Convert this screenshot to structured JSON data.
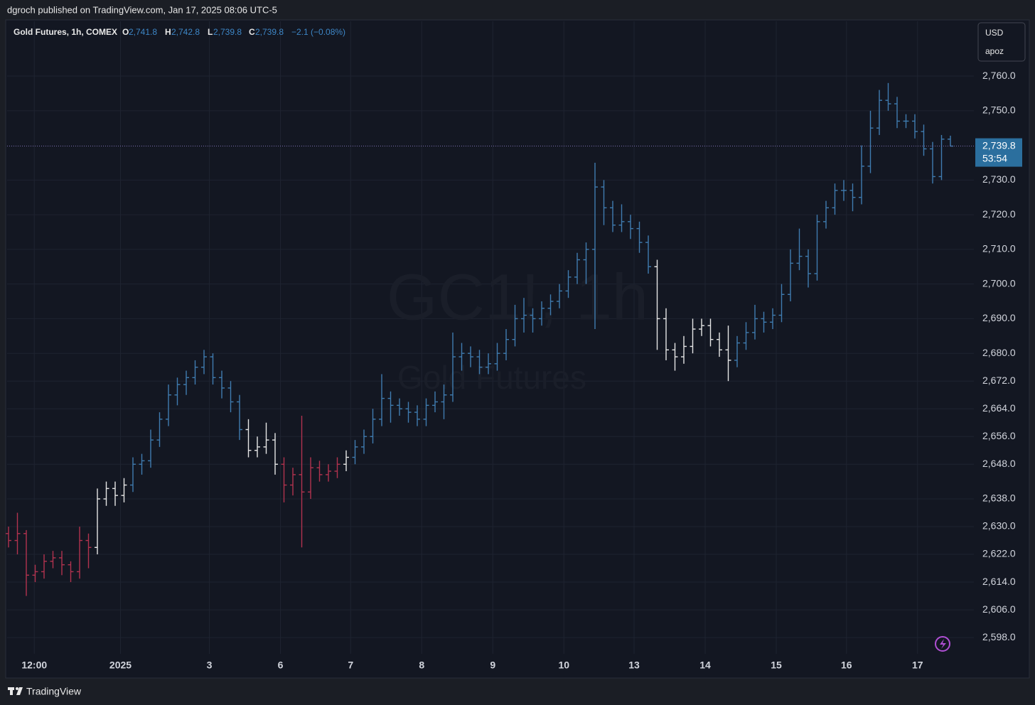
{
  "header": {
    "published": "dgroch published on TradingView.com, Jan 17, 2025 08:06 UTC-5"
  },
  "legend": {
    "symbol": "Gold Futures, 1h, COMEX",
    "o_key": "O",
    "o_val": "2,741.8",
    "h_key": "H",
    "h_val": "2,742.8",
    "l_key": "L",
    "l_val": "2,739.8",
    "c_key": "C",
    "c_val": "2,739.8",
    "change": "−2.1 (−0.08%)"
  },
  "scale_box": {
    "currency": "USD",
    "script": "apoz"
  },
  "watermark": {
    "symbol": "GC1!, 1h",
    "name": "Gold Futures"
  },
  "footer": {
    "brand": "TradingView"
  },
  "chart_data": {
    "type": "ohlc",
    "colors": {
      "r": "#b2334f",
      "w": "#e6e6e6",
      "b": "#3f7cb0"
    },
    "bar_colors": [
      "r",
      "r",
      "r",
      "r",
      "r",
      "r",
      "r",
      "r",
      "r",
      "r",
      "w",
      "w",
      "w",
      "w",
      "b",
      "b",
      "b",
      "b",
      "b",
      "b",
      "b",
      "b",
      "b",
      "b",
      "b",
      "b",
      "b",
      "w",
      "w",
      "w",
      "w",
      "r",
      "r",
      "r",
      "r",
      "r",
      "r",
      "r",
      "w",
      "b",
      "b",
      "b",
      "b",
      "b",
      "b",
      "b",
      "b",
      "b",
      "b",
      "b",
      "b",
      "b",
      "b",
      "b",
      "b",
      "b",
      "b",
      "b",
      "b",
      "b",
      "b",
      "b",
      "b",
      "b",
      "b",
      "b",
      "b",
      "b",
      "b",
      "b",
      "b",
      "b",
      "b",
      "w",
      "w",
      "w",
      "w",
      "w",
      "w",
      "w",
      "w",
      "w",
      "b",
      "b",
      "b",
      "b",
      "b",
      "b",
      "b",
      "b",
      "b",
      "b",
      "b",
      "b",
      "b",
      "b",
      "b",
      "b",
      "b",
      "b",
      "b",
      "b",
      "b",
      "b",
      "b",
      "b",
      "b"
    ],
    "ohlc": [
      [
        2628,
        2630,
        2624,
        2626
      ],
      [
        2626,
        2634,
        2622,
        2628
      ],
      [
        2628,
        2629,
        2610,
        2616
      ],
      [
        2616,
        2619,
        2614,
        2617
      ],
      [
        2617,
        2622,
        2615,
        2620
      ],
      [
        2620,
        2623,
        2618,
        2621
      ],
      [
        2621,
        2623,
        2616,
        2619
      ],
      [
        2619,
        2620,
        2614,
        2617
      ],
      [
        2617,
        2630,
        2615,
        2626
      ],
      [
        2626,
        2628,
        2618,
        2624
      ],
      [
        2624,
        2641,
        2622,
        2638
      ],
      [
        2638,
        2643,
        2636,
        2641
      ],
      [
        2641,
        2643,
        2636,
        2639
      ],
      [
        2639,
        2644,
        2637,
        2642
      ],
      [
        2642,
        2650,
        2640,
        2648
      ],
      [
        2648,
        2651,
        2645,
        2649
      ],
      [
        2649,
        2658,
        2647,
        2655
      ],
      [
        2655,
        2663,
        2653,
        2661
      ],
      [
        2661,
        2671,
        2659,
        2668
      ],
      [
        2668,
        2673,
        2665,
        2671
      ],
      [
        2671,
        2675,
        2668,
        2673
      ],
      [
        2673,
        2678,
        2671,
        2676
      ],
      [
        2676,
        2681,
        2674,
        2679
      ],
      [
        2679,
        2680,
        2671,
        2673
      ],
      [
        2673,
        2675,
        2667,
        2670
      ],
      [
        2670,
        2672,
        2663,
        2666
      ],
      [
        2666,
        2668,
        2655,
        2658
      ],
      [
        2658,
        2661,
        2650,
        2652
      ],
      [
        2652,
        2656,
        2650,
        2653
      ],
      [
        2653,
        2660,
        2651,
        2655
      ],
      [
        2655,
        2657,
        2645,
        2648
      ],
      [
        2648,
        2650,
        2637,
        2642
      ],
      [
        2642,
        2647,
        2639,
        2645
      ],
      [
        2645,
        2662,
        2624,
        2640
      ],
      [
        2640,
        2650,
        2638,
        2647
      ],
      [
        2647,
        2649,
        2643,
        2645
      ],
      [
        2645,
        2648,
        2643,
        2646
      ],
      [
        2646,
        2650,
        2644,
        2648
      ],
      [
        2648,
        2652,
        2646,
        2650
      ],
      [
        2650,
        2655,
        2648,
        2653
      ],
      [
        2653,
        2658,
        2651,
        2656
      ],
      [
        2656,
        2664,
        2654,
        2661
      ],
      [
        2661,
        2674,
        2659,
        2667
      ],
      [
        2667,
        2669,
        2660,
        2665
      ],
      [
        2665,
        2667,
        2662,
        2664
      ],
      [
        2664,
        2666,
        2660,
        2663
      ],
      [
        2663,
        2665,
        2659,
        2661
      ],
      [
        2661,
        2667,
        2659,
        2665
      ],
      [
        2665,
        2669,
        2663,
        2666
      ],
      [
        2666,
        2671,
        2661,
        2668
      ],
      [
        2668,
        2686,
        2666,
        2679
      ],
      [
        2679,
        2683,
        2675,
        2680
      ],
      [
        2680,
        2682,
        2676,
        2679
      ],
      [
        2679,
        2681,
        2674,
        2676
      ],
      [
        2676,
        2680,
        2674,
        2677
      ],
      [
        2677,
        2683,
        2675,
        2680
      ],
      [
        2680,
        2687,
        2678,
        2684
      ],
      [
        2684,
        2694,
        2682,
        2690
      ],
      [
        2690,
        2696,
        2686,
        2691
      ],
      [
        2691,
        2693,
        2686,
        2690
      ],
      [
        2690,
        2695,
        2688,
        2693
      ],
      [
        2693,
        2697,
        2691,
        2695
      ],
      [
        2695,
        2700,
        2693,
        2698
      ],
      [
        2698,
        2704,
        2696,
        2702
      ],
      [
        2702,
        2709,
        2700,
        2707
      ],
      [
        2707,
        2712,
        2700,
        2710
      ],
      [
        2710,
        2735,
        2687,
        2728
      ],
      [
        2728,
        2730,
        2717,
        2722
      ],
      [
        2722,
        2724,
        2715,
        2717
      ],
      [
        2717,
        2723,
        2715,
        2718
      ],
      [
        2718,
        2720,
        2713,
        2716
      ],
      [
        2716,
        2718,
        2709,
        2712
      ],
      [
        2712,
        2714,
        2703,
        2705
      ],
      [
        2705,
        2707,
        2681,
        2690
      ],
      [
        2690,
        2693,
        2678,
        2681
      ],
      [
        2681,
        2683,
        2675,
        2679
      ],
      [
        2679,
        2685,
        2677,
        2682
      ],
      [
        2682,
        2690,
        2680,
        2687
      ],
      [
        2687,
        2690,
        2685,
        2688
      ],
      [
        2688,
        2690,
        2682,
        2684
      ],
      [
        2684,
        2686,
        2679,
        2681
      ],
      [
        2681,
        2688,
        2672,
        2678
      ],
      [
        2678,
        2685,
        2676,
        2683
      ],
      [
        2683,
        2689,
        2681,
        2686
      ],
      [
        2686,
        2694,
        2684,
        2690
      ],
      [
        2690,
        2692,
        2686,
        2689
      ],
      [
        2689,
        2693,
        2687,
        2691
      ],
      [
        2691,
        2700,
        2689,
        2697
      ],
      [
        2697,
        2710,
        2695,
        2706
      ],
      [
        2706,
        2716,
        2704,
        2708
      ],
      [
        2708,
        2710,
        2699,
        2703
      ],
      [
        2703,
        2720,
        2701,
        2718
      ],
      [
        2718,
        2724,
        2716,
        2722
      ],
      [
        2722,
        2729,
        2720,
        2727
      ],
      [
        2727,
        2730,
        2724,
        2727
      ],
      [
        2727,
        2729,
        2721,
        2725
      ],
      [
        2725,
        2740,
        2723,
        2734
      ],
      [
        2734,
        2750,
        2732,
        2745
      ],
      [
        2745,
        2756,
        2743,
        2753
      ],
      [
        2753,
        2758,
        2750,
        2752
      ],
      [
        2752,
        2754,
        2745,
        2747
      ],
      [
        2747,
        2749,
        2745,
        2747
      ],
      [
        2747,
        2749,
        2742,
        2744
      ],
      [
        2744,
        2746,
        2737,
        2739
      ],
      [
        2739,
        2741,
        2729,
        2731
      ],
      [
        2731,
        2743,
        2730,
        2741.8
      ],
      [
        2741.8,
        2742.8,
        2739.8,
        2739.8
      ]
    ],
    "xlim": [
      -0.16,
      108.64
    ],
    "xticks": [
      {
        "value": 2.9,
        "label": "12:00"
      },
      {
        "value": 12.6,
        "label": "2025"
      },
      {
        "value": 22.6,
        "label": "3"
      },
      {
        "value": 30.6,
        "label": "6"
      },
      {
        "value": 38.5,
        "label": "7"
      },
      {
        "value": 46.5,
        "label": "8"
      },
      {
        "value": 54.5,
        "label": "9"
      },
      {
        "value": 62.5,
        "label": "10"
      },
      {
        "value": 70.4,
        "label": "13"
      },
      {
        "value": 78.4,
        "label": "14"
      },
      {
        "value": 86.4,
        "label": "15"
      },
      {
        "value": 94.3,
        "label": "16"
      },
      {
        "value": 102.3,
        "label": "17"
      }
    ],
    "ylim": [
      2593.3,
      2775.8
    ],
    "yticks": [
      {
        "value": 2760,
        "label": "2,760.0"
      },
      {
        "value": 2750,
        "label": "2,750.0"
      },
      {
        "value": 2730,
        "label": "2,730.0"
      },
      {
        "value": 2720,
        "label": "2,720.0"
      },
      {
        "value": 2710,
        "label": "2,710.0"
      },
      {
        "value": 2700,
        "label": "2,700.0"
      },
      {
        "value": 2690,
        "label": "2,690.0"
      },
      {
        "value": 2680,
        "label": "2,680.0"
      },
      {
        "value": 2672,
        "label": "2,672.0"
      },
      {
        "value": 2664,
        "label": "2,664.0"
      },
      {
        "value": 2656,
        "label": "2,656.0"
      },
      {
        "value": 2648,
        "label": "2,648.0"
      },
      {
        "value": 2638,
        "label": "2,638.0"
      },
      {
        "value": 2630,
        "label": "2,630.0"
      },
      {
        "value": 2622,
        "label": "2,622.0"
      },
      {
        "value": 2614,
        "label": "2,614.0"
      },
      {
        "value": 2606,
        "label": "2,606.0"
      },
      {
        "value": 2598,
        "label": "2,598.0"
      }
    ],
    "grid": true,
    "last_price": {
      "value": 2739.8,
      "label": "2,739.8"
    },
    "countdown": "53:54",
    "last_price_color": "#2b6f9e"
  }
}
